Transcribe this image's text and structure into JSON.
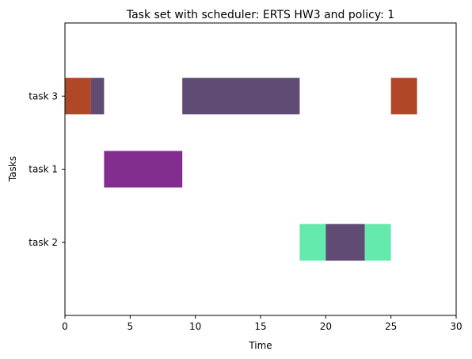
{
  "chart_data": {
    "type": "gantt",
    "title": "Task set with scheduler: ERTS HW3 and policy: 1",
    "xlabel": "Time",
    "ylabel": "Tasks",
    "xlim": [
      0,
      30
    ],
    "xticks": [
      0,
      5,
      10,
      15,
      20,
      25,
      30
    ],
    "ylim": [
      0,
      4
    ],
    "grid": false,
    "categories": [
      "task 3",
      "task 1",
      "task 2"
    ],
    "category_positions": {
      "task 3": 3,
      "task 1": 2,
      "task 2": 1
    },
    "bar_height_data": 0.5,
    "colors": {
      "orange": "#b04727",
      "slate": "#5f4b73",
      "purple": "#842d90",
      "green": "#65eaad"
    },
    "series": [
      {
        "task": "task 3",
        "start": 0,
        "end": 2,
        "color": "#b04727"
      },
      {
        "task": "task 3",
        "start": 2,
        "end": 3,
        "color": "#5f4b73"
      },
      {
        "task": "task 3",
        "start": 9,
        "end": 18,
        "color": "#5f4b73"
      },
      {
        "task": "task 3",
        "start": 25,
        "end": 27,
        "color": "#b04727"
      },
      {
        "task": "task 1",
        "start": 3,
        "end": 9,
        "color": "#842d90"
      },
      {
        "task": "task 2",
        "start": 18,
        "end": 20,
        "color": "#65eaad"
      },
      {
        "task": "task 2",
        "start": 20,
        "end": 23,
        "color": "#5f4b73"
      },
      {
        "task": "task 2",
        "start": 23,
        "end": 25,
        "color": "#65eaad"
      }
    ]
  }
}
